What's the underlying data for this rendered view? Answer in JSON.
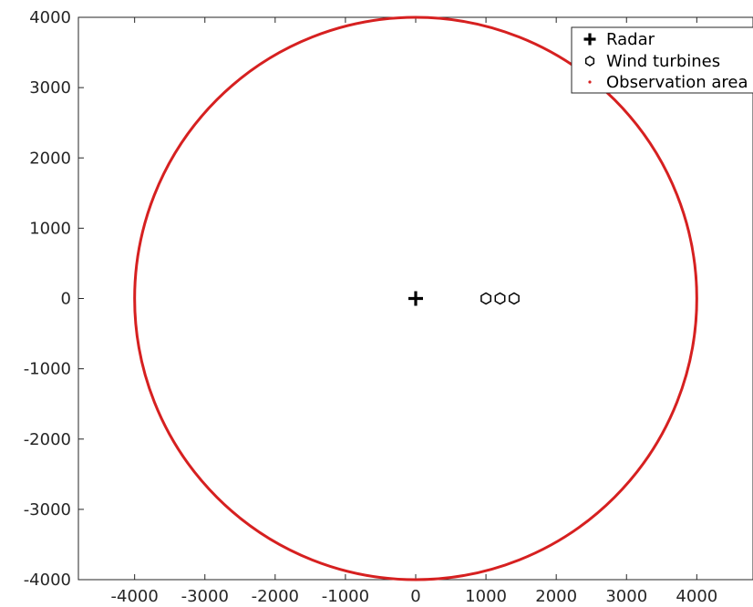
{
  "chart_data": {
    "type": "scatter",
    "title": "",
    "xlabel": "",
    "ylabel": "",
    "xlim": [
      -4800,
      4800
    ],
    "ylim": [
      -4000,
      4000
    ],
    "xticks": [
      -4000,
      -3000,
      -2000,
      -1000,
      0,
      1000,
      2000,
      3000,
      4000
    ],
    "yticks": [
      -4000,
      -3000,
      -2000,
      -1000,
      0,
      1000,
      2000,
      3000,
      4000
    ],
    "grid": false,
    "legend_position": "top-right",
    "series": [
      {
        "name": "Radar",
        "marker": "plus",
        "color": "#000000",
        "points": [
          [
            0,
            0
          ]
        ]
      },
      {
        "name": "Wind turbines",
        "marker": "hexagon",
        "color": "#000000",
        "points": [
          [
            1000,
            0
          ],
          [
            1200,
            0
          ],
          [
            1400,
            0
          ]
        ]
      },
      {
        "name": "Observation area",
        "marker": "dot",
        "color": "#d62020",
        "shape": "circle",
        "center": [
          0,
          0
        ],
        "radius": 4000
      }
    ]
  }
}
